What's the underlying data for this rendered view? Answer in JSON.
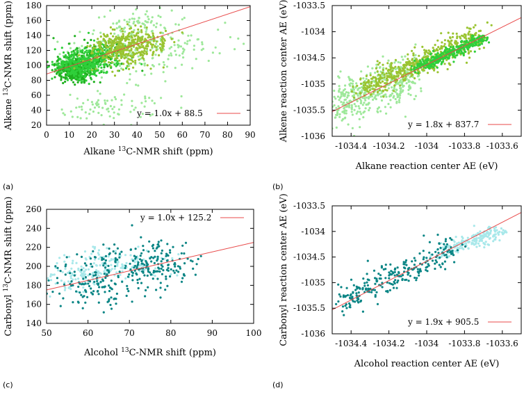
{
  "colors": {
    "fit_line": "#e84a4a",
    "alkene_dark": "#1fb01f",
    "alkene_mid": "#2fcf3a",
    "alkene_olive": "#9ac431",
    "alkene_light": "#9ee89a",
    "carbonyl_dark": "#0a8585",
    "carbonyl_light": "#a8e8ea",
    "frame": "#000000"
  },
  "chart_data": [
    {
      "panel": "(a)",
      "type": "scatter",
      "xlabel": {
        "pre": "Alkane ",
        "sup": "13",
        "post": "C-NMR shift (ppm)"
      },
      "ylabel": {
        "pre": "Alkene ",
        "sup": "13",
        "post": "C-NMR shift (ppm)"
      },
      "xlim": [
        0,
        90
      ],
      "ylim": [
        20,
        180
      ],
      "xticks": [
        0,
        10,
        20,
        30,
        40,
        50,
        60,
        70,
        80,
        90
      ],
      "yticks": [
        20,
        40,
        60,
        80,
        100,
        120,
        140,
        160,
        180
      ],
      "xtick_labels": [
        "0",
        "10",
        "20",
        "30",
        "40",
        "50",
        "60",
        "70",
        "80",
        "90"
      ],
      "ytick_labels": [
        "20",
        "40",
        "60",
        "80",
        "100",
        "120",
        "140",
        "160",
        "180"
      ],
      "fit": {
        "slope": 1.0,
        "intercept": 88.5,
        "label": "y = 1.0x + 88.5"
      },
      "legend_position": "bottom-right",
      "series": [
        {
          "name": "light-green scatter",
          "color": "alkene_light",
          "n": 500,
          "clusters": [
            [
              35,
              122,
              12,
              16,
              1.0
            ],
            [
              15,
              100,
              5,
              10,
              0.6
            ],
            [
              55,
              135,
              14,
              14,
              0.5
            ]
          ],
          "extras": [
            [
              20,
              40,
              8,
              10,
              0.25
            ],
            [
              38,
              45,
              8,
              12,
              0.2
            ],
            [
              40,
              160,
              8,
              10,
              0.25
            ]
          ]
        },
        {
          "name": "dark-green scatter",
          "color": "alkene_dark",
          "n": 480,
          "clusters": [
            [
              12,
              94,
              4,
              8,
              1.0
            ],
            [
              22,
              110,
              6,
              10,
              0.4
            ]
          ]
        },
        {
          "name": "mid-green scatter",
          "color": "alkene_mid",
          "n": 380,
          "clusters": [
            [
              14,
              100,
              6,
              9,
              1.0
            ],
            [
              24,
              114,
              5,
              9,
              0.5
            ]
          ]
        },
        {
          "name": "olive-green scatter",
          "color": "alkene_olive",
          "n": 420,
          "clusters": [
            [
              33,
              122,
              7,
              11,
              1.0
            ],
            [
              42,
              132,
              7,
              12,
              0.5
            ]
          ]
        }
      ]
    },
    {
      "panel": "(b)",
      "type": "scatter",
      "xlabel": {
        "pre": "Alkane reaction center AE (eV)",
        "sup": "",
        "post": ""
      },
      "ylabel": {
        "pre": "Alkene reaction center AE (eV)",
        "sup": "",
        "post": ""
      },
      "xlim": [
        -1034.5,
        -1033.5
      ],
      "ylim": [
        -1036,
        -1033.5
      ],
      "xticks": [
        -1034.4,
        -1034.2,
        -1034.0,
        -1033.8,
        -1033.6
      ],
      "yticks": [
        -1036,
        -1035.5,
        -1035,
        -1034.5,
        -1034,
        -1033.5
      ],
      "xtick_labels": [
        "-1034.4",
        "-1034.2",
        "-1034",
        "-1033.8",
        "-1033.6"
      ],
      "ytick_labels": [
        "-1036",
        "-1035.5",
        "-1035",
        "-1034.5",
        "-1034",
        "-1033.5"
      ],
      "fit": {
        "slope": 1.8,
        "intercept": 837.7,
        "label": "y = 1.8x + 837.7"
      },
      "legend_position": "bottom-right",
      "series": [
        {
          "name": "light-green scatter",
          "color": "alkene_light",
          "n": 450,
          "line": [
            -1034.5,
            -1035.45,
            -1034.05,
            -1034.75
          ],
          "spread": [
            0.08,
            0.22
          ]
        },
        {
          "name": "olive-green scatter",
          "color": "alkene_olive",
          "n": 520,
          "line": [
            -1034.35,
            -1035.1,
            -1033.72,
            -1034.1
          ],
          "spread": [
            0.06,
            0.12
          ]
        },
        {
          "name": "mid-green scatter",
          "color": "alkene_mid",
          "n": 360,
          "line": [
            -1034.05,
            -1034.7,
            -1033.7,
            -1034.12
          ],
          "spread": [
            0.04,
            0.06
          ]
        }
      ]
    },
    {
      "panel": "(c)",
      "type": "scatter",
      "xlabel": {
        "pre": "Alcohol ",
        "sup": "13",
        "post": "C-NMR shift (ppm)"
      },
      "ylabel": {
        "pre": "Carbonyl ",
        "sup": "13",
        "post": "C-NMR shift (ppm)"
      },
      "xlim": [
        50,
        100
      ],
      "ylim": [
        140,
        260
      ],
      "xticks": [
        50,
        60,
        70,
        80,
        90,
        100
      ],
      "yticks": [
        140,
        160,
        180,
        200,
        220,
        240,
        260
      ],
      "xtick_labels": [
        "50",
        "60",
        "70",
        "80",
        "90",
        "100"
      ],
      "ytick_labels": [
        "140",
        "160",
        "180",
        "200",
        "220",
        "240",
        "260"
      ],
      "fit": {
        "slope": 1.0,
        "intercept": 125.2,
        "label": "y = 1.0x + 125.2"
      },
      "legend_position": "top-right",
      "series": [
        {
          "name": "light-cyan scatter",
          "color": "carbonyl_light",
          "n": 220,
          "clusters": [
            [
              63,
              196,
              6,
              8,
              1.0
            ],
            [
              55,
              188,
              4,
              9,
              0.5
            ],
            [
              70,
              205,
              6,
              8,
              0.5
            ]
          ]
        },
        {
          "name": "teal scatter",
          "color": "carbonyl_dark",
          "n": 330,
          "clusters": [
            [
              71,
              198,
              7,
              14,
              1.0
            ],
            [
              60,
              178,
              6,
              12,
              0.6
            ],
            [
              78,
              205,
              4,
              10,
              0.4
            ]
          ]
        }
      ]
    },
    {
      "panel": "(d)",
      "type": "scatter",
      "xlabel": {
        "pre": "Alcohol reaction center AE (eV)",
        "sup": "",
        "post": ""
      },
      "ylabel": {
        "pre": "Carbonyl reaction center AE (eV)",
        "sup": "",
        "post": ""
      },
      "xlim": [
        -1034.5,
        -1033.5
      ],
      "ylim": [
        -1036,
        -1033.5
      ],
      "xticks": [
        -1034.4,
        -1034.2,
        -1034.0,
        -1033.8,
        -1033.6
      ],
      "yticks": [
        -1036,
        -1035.5,
        -1035,
        -1034.5,
        -1034,
        -1033.5
      ],
      "xtick_labels": [
        "-1034.4",
        "-1034.2",
        "-1034",
        "-1033.8",
        "-1033.6"
      ],
      "ytick_labels": [
        "-1036",
        "-1035.5",
        "-1035",
        "-1034.5",
        "-1034",
        "-1033.5"
      ],
      "fit": {
        "slope": 1.9,
        "intercept": 905.5,
        "label": "y = 1.9x + 905.5"
      },
      "legend_position": "bottom-right",
      "series": [
        {
          "name": "light-cyan scatter",
          "color": "carbonyl_light",
          "n": 200,
          "line": [
            -1033.95,
            -1034.45,
            -1033.6,
            -1034.0
          ],
          "spread": [
            0.05,
            0.07
          ]
        },
        {
          "name": "teal scatter",
          "color": "carbonyl_dark",
          "n": 260,
          "line": [
            -1034.45,
            -1035.35,
            -1033.85,
            -1034.35
          ],
          "spread": [
            0.05,
            0.15
          ]
        }
      ]
    }
  ]
}
